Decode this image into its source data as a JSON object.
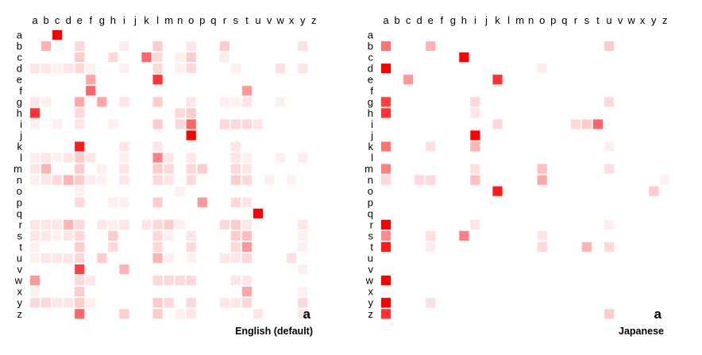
{
  "chart_data": [
    {
      "type": "heatmap",
      "title": "English (default)",
      "corner_label": "a",
      "x_labels": [
        "a",
        "b",
        "c",
        "d",
        "e",
        "f",
        "g",
        "h",
        "i",
        "j",
        "k",
        "l",
        "m",
        "n",
        "o",
        "p",
        "q",
        "r",
        "s",
        "t",
        "u",
        "v",
        "w",
        "x",
        "y",
        "z"
      ],
      "y_labels": [
        "a",
        "b",
        "c",
        "d",
        "e",
        "f",
        "g",
        "h",
        "i",
        "j",
        "k",
        "l",
        "m",
        "n",
        "o",
        "p",
        "q",
        "r",
        "s",
        "t",
        "u",
        "v",
        "w",
        "x",
        "y",
        "z"
      ],
      "value_range": [
        0,
        1
      ],
      "colors": {
        "low": "#ffffff",
        "high": "#ff0000"
      },
      "cells": [
        [
          "a",
          "c",
          1.0
        ],
        [
          "b",
          "b",
          0.3
        ],
        [
          "b",
          "e",
          0.15
        ],
        [
          "b",
          "i",
          0.08
        ],
        [
          "b",
          "l",
          0.2
        ],
        [
          "b",
          "o",
          0.1
        ],
        [
          "b",
          "r",
          0.2
        ],
        [
          "b",
          "y",
          0.12
        ],
        [
          "c",
          "e",
          0.2
        ],
        [
          "c",
          "h",
          0.15
        ],
        [
          "c",
          "k",
          0.6
        ],
        [
          "c",
          "l",
          0.15
        ],
        [
          "c",
          "n",
          0.06
        ],
        [
          "c",
          "o",
          0.2
        ],
        [
          "c",
          "r",
          0.08
        ],
        [
          "d",
          "a",
          0.1
        ],
        [
          "d",
          "b",
          0.1
        ],
        [
          "d",
          "c",
          0.06
        ],
        [
          "d",
          "d",
          0.1
        ],
        [
          "d",
          "e",
          0.15
        ],
        [
          "d",
          "f",
          0.06
        ],
        [
          "d",
          "i",
          0.06
        ],
        [
          "d",
          "l",
          0.15
        ],
        [
          "d",
          "n",
          0.06
        ],
        [
          "d",
          "o",
          0.15
        ],
        [
          "d",
          "s",
          0.06
        ],
        [
          "d",
          "w",
          0.12
        ],
        [
          "d",
          "y",
          0.1
        ],
        [
          "e",
          "f",
          0.35
        ],
        [
          "e",
          "l",
          0.8
        ],
        [
          "f",
          "f",
          0.6
        ],
        [
          "f",
          "t",
          0.4
        ],
        [
          "g",
          "a",
          0.1
        ],
        [
          "g",
          "b",
          0.06
        ],
        [
          "g",
          "e",
          0.35
        ],
        [
          "g",
          "g",
          0.35
        ],
        [
          "g",
          "i",
          0.1
        ],
        [
          "g",
          "l",
          0.2
        ],
        [
          "g",
          "o",
          0.1
        ],
        [
          "g",
          "r",
          0.06
        ],
        [
          "g",
          "s",
          0.06
        ],
        [
          "g",
          "t",
          0.1
        ],
        [
          "g",
          "w",
          0.06
        ],
        [
          "h",
          "a",
          0.8
        ],
        [
          "h",
          "e",
          0.15
        ],
        [
          "h",
          "n",
          0.15
        ],
        [
          "h",
          "o",
          0.2
        ],
        [
          "i",
          "a",
          0.06
        ],
        [
          "i",
          "c",
          0.06
        ],
        [
          "i",
          "e",
          0.1
        ],
        [
          "i",
          "h",
          0.06
        ],
        [
          "i",
          "l",
          0.2
        ],
        [
          "i",
          "n",
          0.15
        ],
        [
          "i",
          "o",
          0.6
        ],
        [
          "i",
          "r",
          0.15
        ],
        [
          "i",
          "s",
          0.15
        ],
        [
          "i",
          "t",
          0.15
        ],
        [
          "i",
          "u",
          0.1
        ],
        [
          "j",
          "o",
          1.0
        ],
        [
          "k",
          "e",
          0.9
        ],
        [
          "k",
          "i",
          0.1
        ],
        [
          "k",
          "l",
          0.1
        ],
        [
          "k",
          "s",
          0.1
        ],
        [
          "l",
          "a",
          0.08
        ],
        [
          "l",
          "b",
          0.1
        ],
        [
          "l",
          "c",
          0.06
        ],
        [
          "l",
          "d",
          0.1
        ],
        [
          "l",
          "e",
          0.2
        ],
        [
          "l",
          "f",
          0.1
        ],
        [
          "l",
          "i",
          0.06
        ],
        [
          "l",
          "l",
          0.5
        ],
        [
          "l",
          "m",
          0.1
        ],
        [
          "l",
          "o",
          0.1
        ],
        [
          "l",
          "s",
          0.1
        ],
        [
          "l",
          "t",
          0.06
        ],
        [
          "l",
          "w",
          0.06
        ],
        [
          "l",
          "y",
          0.08
        ],
        [
          "m",
          "a",
          0.1
        ],
        [
          "m",
          "b",
          0.3
        ],
        [
          "m",
          "e",
          0.2
        ],
        [
          "m",
          "g",
          0.06
        ],
        [
          "m",
          "i",
          0.1
        ],
        [
          "m",
          "l",
          0.2
        ],
        [
          "m",
          "m",
          0.15
        ],
        [
          "m",
          "o",
          0.15
        ],
        [
          "m",
          "p",
          0.2
        ],
        [
          "m",
          "s",
          0.15
        ],
        [
          "m",
          "t",
          0.1
        ],
        [
          "n",
          "a",
          0.06
        ],
        [
          "n",
          "b",
          0.1
        ],
        [
          "n",
          "c",
          0.15
        ],
        [
          "n",
          "d",
          0.3
        ],
        [
          "n",
          "e",
          0.2
        ],
        [
          "n",
          "f",
          0.08
        ],
        [
          "n",
          "g",
          0.06
        ],
        [
          "n",
          "i",
          0.1
        ],
        [
          "n",
          "l",
          0.15
        ],
        [
          "n",
          "m",
          0.1
        ],
        [
          "n",
          "o",
          0.15
        ],
        [
          "n",
          "s",
          0.2
        ],
        [
          "n",
          "t",
          0.15
        ],
        [
          "n",
          "v",
          0.06
        ],
        [
          "n",
          "x",
          0.06
        ],
        [
          "o",
          "e",
          0.06
        ],
        [
          "o",
          "n",
          0.06
        ],
        [
          "p",
          "e",
          0.15
        ],
        [
          "p",
          "h",
          0.06
        ],
        [
          "p",
          "i",
          0.06
        ],
        [
          "p",
          "l",
          0.2
        ],
        [
          "p",
          "p",
          0.4
        ],
        [
          "p",
          "s",
          0.15
        ],
        [
          "p",
          "t",
          0.1
        ],
        [
          "q",
          "u",
          1.0
        ],
        [
          "r",
          "a",
          0.1
        ],
        [
          "r",
          "b",
          0.1
        ],
        [
          "r",
          "c",
          0.1
        ],
        [
          "r",
          "d",
          0.3
        ],
        [
          "r",
          "e",
          0.15
        ],
        [
          "r",
          "g",
          0.1
        ],
        [
          "r",
          "h",
          0.06
        ],
        [
          "r",
          "i",
          0.1
        ],
        [
          "r",
          "k",
          0.1
        ],
        [
          "r",
          "l",
          0.15
        ],
        [
          "r",
          "m",
          0.2
        ],
        [
          "r",
          "n",
          0.06
        ],
        [
          "r",
          "r",
          0.15
        ],
        [
          "r",
          "s",
          0.2
        ],
        [
          "r",
          "t",
          0.1
        ],
        [
          "r",
          "y",
          0.1
        ],
        [
          "s",
          "a",
          0.1
        ],
        [
          "s",
          "b",
          0.1
        ],
        [
          "s",
          "c",
          0.06
        ],
        [
          "s",
          "d",
          0.1
        ],
        [
          "s",
          "e",
          0.15
        ],
        [
          "s",
          "h",
          0.2
        ],
        [
          "s",
          "l",
          0.15
        ],
        [
          "s",
          "m",
          0.06
        ],
        [
          "s",
          "o",
          0.1
        ],
        [
          "s",
          "s",
          0.2
        ],
        [
          "s",
          "t",
          0.25
        ],
        [
          "s",
          "y",
          0.06
        ],
        [
          "t",
          "a",
          0.06
        ],
        [
          "t",
          "e",
          0.2
        ],
        [
          "t",
          "h",
          0.15
        ],
        [
          "t",
          "l",
          0.15
        ],
        [
          "t",
          "o",
          0.15
        ],
        [
          "t",
          "s",
          0.15
        ],
        [
          "t",
          "t",
          0.4
        ],
        [
          "t",
          "y",
          0.06
        ],
        [
          "u",
          "a",
          0.06
        ],
        [
          "u",
          "b",
          0.1
        ],
        [
          "u",
          "c",
          0.1
        ],
        [
          "u",
          "d",
          0.1
        ],
        [
          "u",
          "e",
          0.15
        ],
        [
          "u",
          "g",
          0.2
        ],
        [
          "u",
          "l",
          0.3
        ],
        [
          "u",
          "m",
          0.06
        ],
        [
          "u",
          "o",
          0.06
        ],
        [
          "u",
          "r",
          0.1
        ],
        [
          "u",
          "s",
          0.1
        ],
        [
          "u",
          "t",
          0.15
        ],
        [
          "u",
          "x",
          0.12
        ],
        [
          "v",
          "e",
          0.75
        ],
        [
          "v",
          "i",
          0.3
        ],
        [
          "v",
          "y",
          0.06
        ],
        [
          "w",
          "a",
          0.4
        ],
        [
          "w",
          "e",
          0.15
        ],
        [
          "w",
          "f",
          0.1
        ],
        [
          "w",
          "l",
          0.15
        ],
        [
          "w",
          "m",
          0.15
        ],
        [
          "w",
          "n",
          0.15
        ],
        [
          "w",
          "o",
          0.15
        ],
        [
          "w",
          "s",
          0.1
        ],
        [
          "w",
          "t",
          0.1
        ],
        [
          "x",
          "a",
          0.06
        ],
        [
          "x",
          "e",
          0.2
        ],
        [
          "x",
          "t",
          0.35
        ],
        [
          "x",
          "y",
          0.06
        ],
        [
          "y",
          "a",
          0.15
        ],
        [
          "y",
          "b",
          0.15
        ],
        [
          "y",
          "c",
          0.1
        ],
        [
          "y",
          "d",
          0.1
        ],
        [
          "y",
          "e",
          0.2
        ],
        [
          "y",
          "f",
          0.06
        ],
        [
          "y",
          "l",
          0.2
        ],
        [
          "y",
          "m",
          0.15
        ],
        [
          "y",
          "o",
          0.15
        ],
        [
          "y",
          "r",
          0.1
        ],
        [
          "y",
          "s",
          0.1
        ],
        [
          "y",
          "t",
          0.15
        ],
        [
          "y",
          "y",
          0.15
        ],
        [
          "z",
          "e",
          0.6
        ],
        [
          "z",
          "i",
          0.2
        ],
        [
          "z",
          "l",
          0.2
        ],
        [
          "z",
          "n",
          0.06
        ],
        [
          "z",
          "o",
          0.1
        ],
        [
          "z",
          "u",
          0.1
        ],
        [
          "z",
          "y",
          0.1
        ]
      ]
    },
    {
      "type": "heatmap",
      "title": "Japanese",
      "corner_label": "a",
      "x_labels": [
        "a",
        "b",
        "c",
        "d",
        "e",
        "f",
        "g",
        "h",
        "i",
        "j",
        "k",
        "l",
        "m",
        "n",
        "o",
        "p",
        "q",
        "r",
        "s",
        "t",
        "u",
        "v",
        "w",
        "x",
        "y",
        "z"
      ],
      "y_labels": [
        "a",
        "b",
        "c",
        "d",
        "e",
        "f",
        "g",
        "h",
        "i",
        "j",
        "k",
        "l",
        "m",
        "n",
        "o",
        "p",
        "q",
        "r",
        "s",
        "t",
        "u",
        "v",
        "w",
        "x",
        "y",
        "z"
      ],
      "value_range": [
        0,
        1
      ],
      "colors": {
        "low": "#ffffff",
        "high": "#ff0000"
      },
      "cells": [
        [
          "b",
          "a",
          0.55
        ],
        [
          "b",
          "e",
          0.3
        ],
        [
          "b",
          "u",
          0.2
        ],
        [
          "c",
          "h",
          1.0
        ],
        [
          "d",
          "a",
          1.0
        ],
        [
          "d",
          "o",
          0.08
        ],
        [
          "e",
          "c",
          0.4
        ],
        [
          "e",
          "k",
          0.8
        ],
        [
          "g",
          "a",
          0.75
        ],
        [
          "g",
          "i",
          0.15
        ],
        [
          "g",
          "u",
          0.15
        ],
        [
          "h",
          "a",
          0.8
        ],
        [
          "h",
          "i",
          0.1
        ],
        [
          "i",
          "k",
          0.15
        ],
        [
          "i",
          "r",
          0.15
        ],
        [
          "i",
          "s",
          0.2
        ],
        [
          "i",
          "t",
          0.6
        ],
        [
          "j",
          "i",
          1.0
        ],
        [
          "k",
          "a",
          0.55
        ],
        [
          "k",
          "e",
          0.12
        ],
        [
          "k",
          "i",
          0.3
        ],
        [
          "k",
          "u",
          0.06
        ],
        [
          "m",
          "a",
          0.5
        ],
        [
          "m",
          "i",
          0.12
        ],
        [
          "m",
          "o",
          0.25
        ],
        [
          "m",
          "u",
          0.12
        ],
        [
          "n",
          "a",
          0.15
        ],
        [
          "n",
          "d",
          0.15
        ],
        [
          "n",
          "e",
          0.15
        ],
        [
          "n",
          "i",
          0.25
        ],
        [
          "n",
          "o",
          0.35
        ],
        [
          "n",
          "z",
          0.06
        ],
        [
          "o",
          "k",
          0.9
        ],
        [
          "o",
          "y",
          0.2
        ],
        [
          "r",
          "a",
          1.0
        ],
        [
          "r",
          "i",
          0.1
        ],
        [
          "r",
          "u",
          0.06
        ],
        [
          "s",
          "a",
          0.45
        ],
        [
          "s",
          "e",
          0.12
        ],
        [
          "s",
          "h",
          0.5
        ],
        [
          "s",
          "o",
          0.1
        ],
        [
          "t",
          "a",
          0.9
        ],
        [
          "t",
          "e",
          0.08
        ],
        [
          "t",
          "o",
          0.15
        ],
        [
          "t",
          "s",
          0.3
        ],
        [
          "t",
          "u",
          0.15
        ],
        [
          "w",
          "a",
          1.0
        ],
        [
          "y",
          "a",
          1.0
        ],
        [
          "y",
          "e",
          0.12
        ],
        [
          "z",
          "a",
          0.8
        ],
        [
          "z",
          "u",
          0.2
        ]
      ]
    }
  ]
}
